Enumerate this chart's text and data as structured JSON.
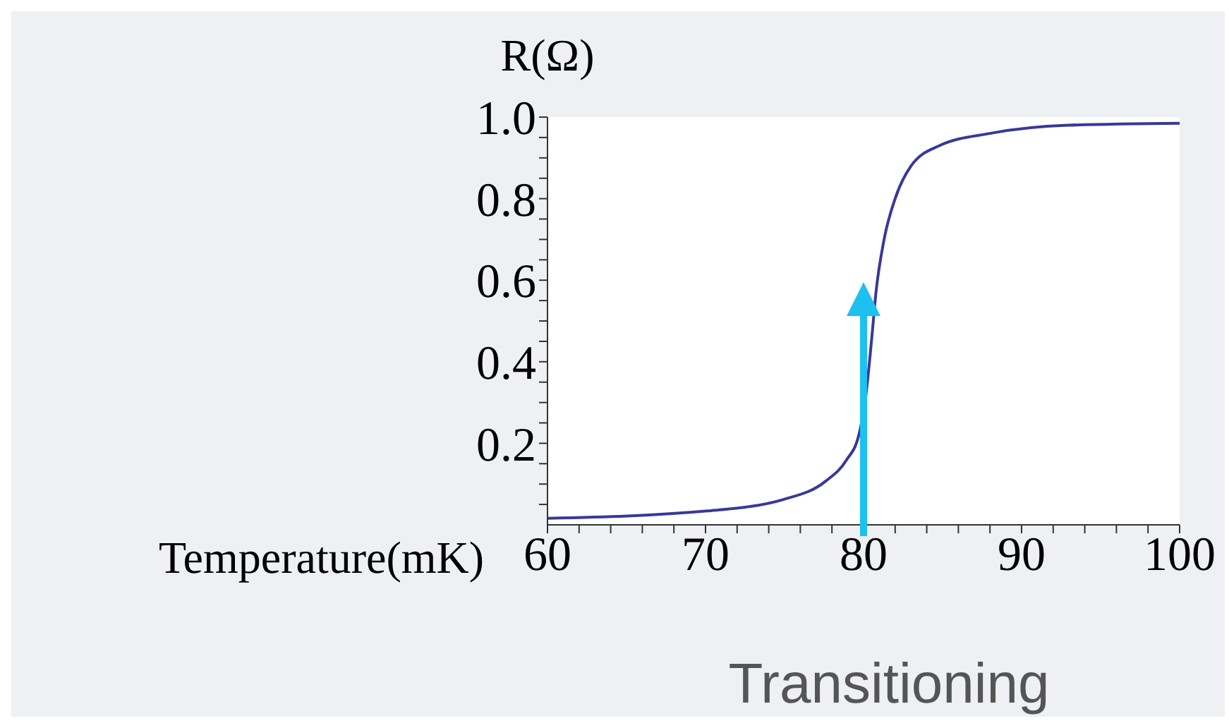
{
  "chart_data": {
    "type": "line",
    "xlabel": "Temperature(mK)",
    "ylabel": "R(Ω)",
    "x": [
      60,
      70.1,
      75,
      77.6,
      78.9,
      79.7,
      80.2,
      80.5,
      80.8,
      81.3,
      82,
      83,
      84.8,
      88,
      92.9,
      100
    ],
    "series": [
      {
        "color": "#38389a",
        "values": [
          0.016,
          0.034,
          0.063,
          0.107,
          0.158,
          0.22,
          0.335,
          0.45,
          0.575,
          0.7,
          0.8,
          0.88,
          0.93,
          0.96,
          0.98,
          0.985
        ]
      }
    ],
    "xlim": [
      60,
      100
    ],
    "xticks": [
      60,
      {
        "value": 62,
        "label": null
      },
      {
        "value": 64,
        "label": null
      },
      {
        "value": 66,
        "label": null
      },
      {
        "value": 68,
        "label": null
      },
      70,
      {
        "value": 72,
        "label": null
      },
      {
        "value": 74,
        "label": null
      },
      {
        "value": 76,
        "label": null
      },
      {
        "value": 78,
        "label": null
      },
      80,
      {
        "value": 82,
        "label": null
      },
      {
        "value": 84,
        "label": null
      },
      {
        "value": 86,
        "label": null
      },
      {
        "value": 88,
        "label": null
      },
      90,
      {
        "value": 92,
        "label": null
      },
      {
        "value": 94,
        "label": null
      },
      {
        "value": 96,
        "label": null
      },
      {
        "value": 98,
        "label": null
      },
      100
    ],
    "ylim": [
      0,
      1
    ],
    "yticks": [
      {
        "value": 0.05,
        "label": null
      },
      {
        "value": 0.1,
        "label": null
      },
      {
        "value": 0.15,
        "label": null
      },
      {
        "value": 0.2,
        "label": "0.2"
      },
      {
        "value": 0.25,
        "label": null
      },
      {
        "value": 0.3,
        "label": null
      },
      {
        "value": 0.35,
        "label": null
      },
      {
        "value": 0.4,
        "label": "0.4"
      },
      {
        "value": 0.45,
        "label": null
      },
      {
        "value": 0.5,
        "label": null
      },
      {
        "value": 0.55,
        "label": null
      },
      {
        "value": 0.6,
        "label": "0.6"
      },
      {
        "value": 0.65,
        "label": null
      },
      {
        "value": 0.7,
        "label": null
      },
      {
        "value": 0.75,
        "label": null
      },
      {
        "value": 0.8,
        "label": "0.8"
      },
      {
        "value": 0.85,
        "label": null
      },
      {
        "value": 0.9,
        "label": null
      },
      {
        "value": 0.95,
        "label": null
      },
      {
        "value": 1,
        "label": "1.0"
      }
    ],
    "annotations": [
      "Transitioning"
    ],
    "marker": "none",
    "line_style": "solid",
    "grid": false
  }
}
